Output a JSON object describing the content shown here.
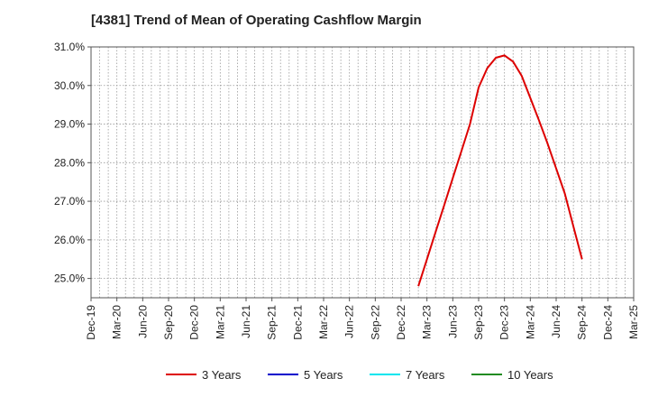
{
  "chart_data": {
    "type": "line",
    "title": "[4381]  Trend of Mean of Operating Cashflow Margin",
    "xlabel": "",
    "ylabel": "",
    "x_ticks": [
      "Dec-19",
      "Mar-20",
      "Jun-20",
      "Sep-20",
      "Dec-20",
      "Mar-21",
      "Jun-21",
      "Sep-21",
      "Dec-21",
      "Mar-22",
      "Jun-22",
      "Sep-22",
      "Dec-22",
      "Mar-23",
      "Jun-23",
      "Sep-23",
      "Dec-23",
      "Mar-24",
      "Jun-24",
      "Sep-24",
      "Dec-24",
      "Mar-25"
    ],
    "y_ticks": [
      "25.0%",
      "26.0%",
      "27.0%",
      "28.0%",
      "29.0%",
      "30.0%",
      "31.0%"
    ],
    "ylim": [
      24.5,
      31.0
    ],
    "grid": true,
    "legend_position": "bottom",
    "series": [
      {
        "name": "3 Years",
        "color": "#dd0000",
        "x": [
          "Feb-23",
          "Mar-23",
          "Apr-23",
          "May-23",
          "Jun-23",
          "Jul-23",
          "Aug-23",
          "Sep-23",
          "Oct-23",
          "Nov-23",
          "Dec-23",
          "Jan-24",
          "Feb-24",
          "Mar-24",
          "Apr-24",
          "May-24",
          "Jun-24",
          "Jul-24",
          "Aug-24",
          "Sep-24"
        ],
        "values": [
          24.8,
          25.5,
          26.2,
          26.9,
          27.6,
          28.3,
          29.0,
          29.95,
          30.45,
          30.72,
          30.78,
          30.62,
          30.25,
          29.68,
          29.1,
          28.5,
          27.85,
          27.2,
          26.35,
          25.5
        ]
      },
      {
        "name": "5 Years",
        "color": "#0000cc",
        "x": [],
        "values": []
      },
      {
        "name": "7 Years",
        "color": "#00e5ee",
        "x": [],
        "values": []
      },
      {
        "name": "10 Years",
        "color": "#228b22",
        "x": [],
        "values": []
      }
    ]
  }
}
